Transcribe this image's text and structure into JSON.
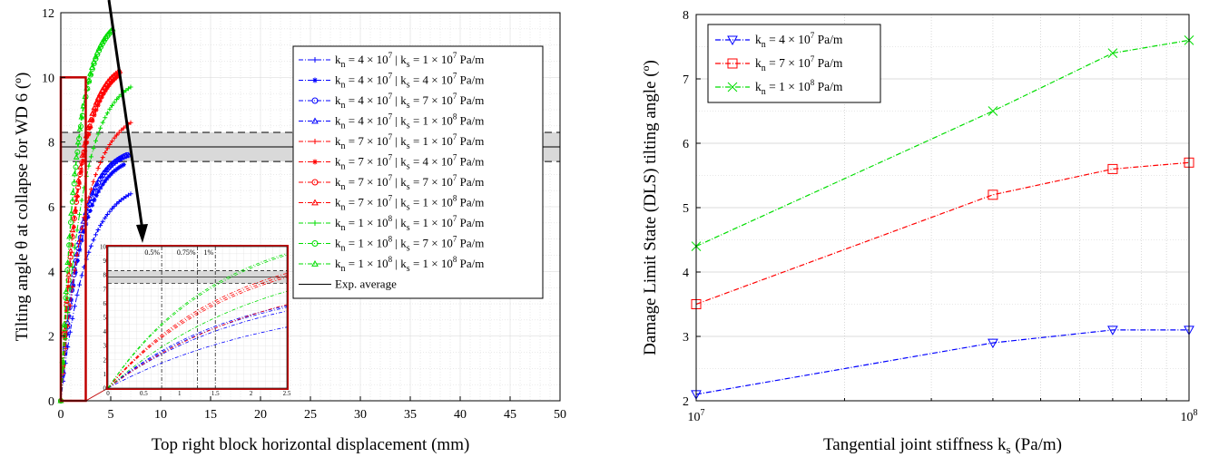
{
  "chart_data": [
    {
      "type": "line",
      "xlabel": "Top right block horizontal displacement (mm)",
      "ylabel": "Tilting angle θ at collapse for WD 6 (º)",
      "xlim": [
        0,
        50
      ],
      "ylim": [
        0,
        12
      ],
      "xticks": [
        "0",
        "5",
        "10",
        "15",
        "20",
        "25",
        "30",
        "35",
        "40",
        "45",
        "50"
      ],
      "yticks": [
        "0",
        "2",
        "4",
        "6",
        "8",
        "10",
        "12"
      ],
      "grid": true,
      "legend_position": "right",
      "series": [
        {
          "name": "k_n = 4 × 10^7 | k_s = 1 × 10^7 Pa/m",
          "label_kn": "4",
          "label_ks": "1",
          "color": "#0000ff",
          "marker": "plus",
          "end": [
            7.0,
            6.4
          ],
          "k": 0.4
        },
        {
          "name": "k_n = 4 × 10^7 | k_s = 4 × 10^7 Pa/m",
          "label_kn": "4",
          "label_ks": "4",
          "color": "#0000ff",
          "marker": "star",
          "end": [
            6.3,
            7.3
          ],
          "k": 0.5
        },
        {
          "name": "k_n = 4 × 10^7 | k_s = 7 × 10^7 Pa/m",
          "label_kn": "4",
          "label_ks": "7",
          "color": "#0000ff",
          "marker": "circle",
          "end": [
            6.6,
            7.6
          ],
          "k": 0.52
        },
        {
          "name": "k_n = 4 × 10^7 | k_s = 1 × 10^8 Pa/m",
          "label_kn": "4",
          "label_ks": "1",
          "label_ks_exp": "8",
          "color": "#0000ff",
          "marker": "triangle",
          "end": [
            6.8,
            7.6
          ],
          "k": 0.55
        },
        {
          "name": "k_n = 7 × 10^7 | k_s = 1 × 10^7 Pa/m",
          "label_kn": "7",
          "label_ks": "1",
          "color": "#ff0000",
          "marker": "plus",
          "end": [
            7.0,
            8.6
          ],
          "k": 0.42
        },
        {
          "name": "k_n = 7 × 10^7 | k_s = 4 × 10^7 Pa/m",
          "label_kn": "7",
          "label_ks": "4",
          "color": "#ff0000",
          "marker": "star",
          "end": [
            5.6,
            10.0
          ],
          "k": 0.55
        },
        {
          "name": "k_n = 7 × 10^7 | k_s = 7 × 10^7 Pa/m",
          "label_kn": "7",
          "label_ks": "7",
          "color": "#ff0000",
          "marker": "circle",
          "end": [
            5.8,
            10.1
          ],
          "k": 0.57
        },
        {
          "name": "k_n = 7 × 10^7 | k_s = 1 × 10^8 Pa/m",
          "label_kn": "7",
          "label_ks": "1",
          "label_ks_exp": "8",
          "color": "#ff0000",
          "marker": "triangle",
          "end": [
            5.9,
            10.2
          ],
          "k": 0.59
        },
        {
          "name": "k_n = 1 × 10^8 | k_s = 1 × 10^7 Pa/m",
          "label_kn": "1",
          "label_kn_exp": "8",
          "label_ks": "1",
          "color": "#00dd00",
          "marker": "plus",
          "end": [
            7.0,
            9.7
          ],
          "k": 0.45
        },
        {
          "name": "k_n = 1 × 10^8 | k_s = 7 × 10^7 Pa/m",
          "label_kn": "1",
          "label_kn_exp": "8",
          "label_ks": "7",
          "color": "#00dd00",
          "marker": "circle",
          "end": [
            5.0,
            11.4
          ],
          "k": 0.62
        },
        {
          "name": "k_n = 1 × 10^8 | k_s = 1 × 10^8 Pa/m",
          "label_kn": "1",
          "label_kn_exp": "8",
          "label_ks": "1",
          "label_ks_exp": "8",
          "color": "#00dd00",
          "marker": "triangle",
          "end": [
            5.2,
            11.5
          ],
          "k": 0.64
        }
      ],
      "experimental": {
        "name": "Exp. average",
        "mean": 7.85,
        "band": [
          7.4,
          8.3
        ],
        "color": "#000000"
      },
      "zoom_box": {
        "x": [
          0,
          2.5
        ],
        "y": [
          0,
          10
        ],
        "color": "#c00000"
      },
      "inset": {
        "xlim": [
          0,
          2.5
        ],
        "ylim": [
          0,
          10
        ],
        "xticks": [
          "0",
          "0.5",
          "1",
          "1.5",
          "2",
          "2.5"
        ],
        "yticks": [
          "0",
          "1",
          "2",
          "3",
          "4",
          "5",
          "6",
          "7",
          "8",
          "9",
          "10"
        ],
        "vlines": [
          0.5,
          0.75,
          1
        ],
        "vline_labels": [
          "0.5%",
          "0.75%",
          "1%"
        ],
        "vline_x_mm": [
          0.75,
          1.25,
          1.5
        ]
      }
    },
    {
      "type": "line",
      "xlabel": "Tangential joint stiffness k_s (Pa/m)",
      "ylabel": "Damage Limit State (DLS) tilting angle (º)",
      "xscale": "log",
      "xlim": [
        10000000,
        100000000
      ],
      "ylim": [
        2,
        8
      ],
      "xtick_labels": [
        {
          "base": "10",
          "exp": "7"
        },
        {
          "base": "10",
          "exp": "8"
        }
      ],
      "yticks": [
        "2",
        "3",
        "4",
        "5",
        "6",
        "7",
        "8"
      ],
      "grid": true,
      "legend_position": "top-left",
      "x": [
        10000000,
        40000000,
        70000000,
        100000000
      ],
      "series": [
        {
          "name": "k_n = 4 × 10^7 Pa/m",
          "label_kn": "4",
          "label_kn_exp": "7",
          "color": "#0000ff",
          "marker": "triangle-down",
          "values": [
            2.1,
            2.9,
            3.1,
            3.1
          ]
        },
        {
          "name": "k_n = 7 × 10^7 Pa/m",
          "label_kn": "7",
          "label_kn_exp": "7",
          "color": "#ff0000",
          "marker": "square",
          "values": [
            3.5,
            5.2,
            5.6,
            5.7
          ]
        },
        {
          "name": "k_n = 1 × 10^8 Pa/m",
          "label_kn": "1",
          "label_kn_exp": "8",
          "color": "#00dd00",
          "marker": "x",
          "values": [
            4.4,
            6.5,
            7.4,
            7.6
          ]
        }
      ]
    }
  ]
}
